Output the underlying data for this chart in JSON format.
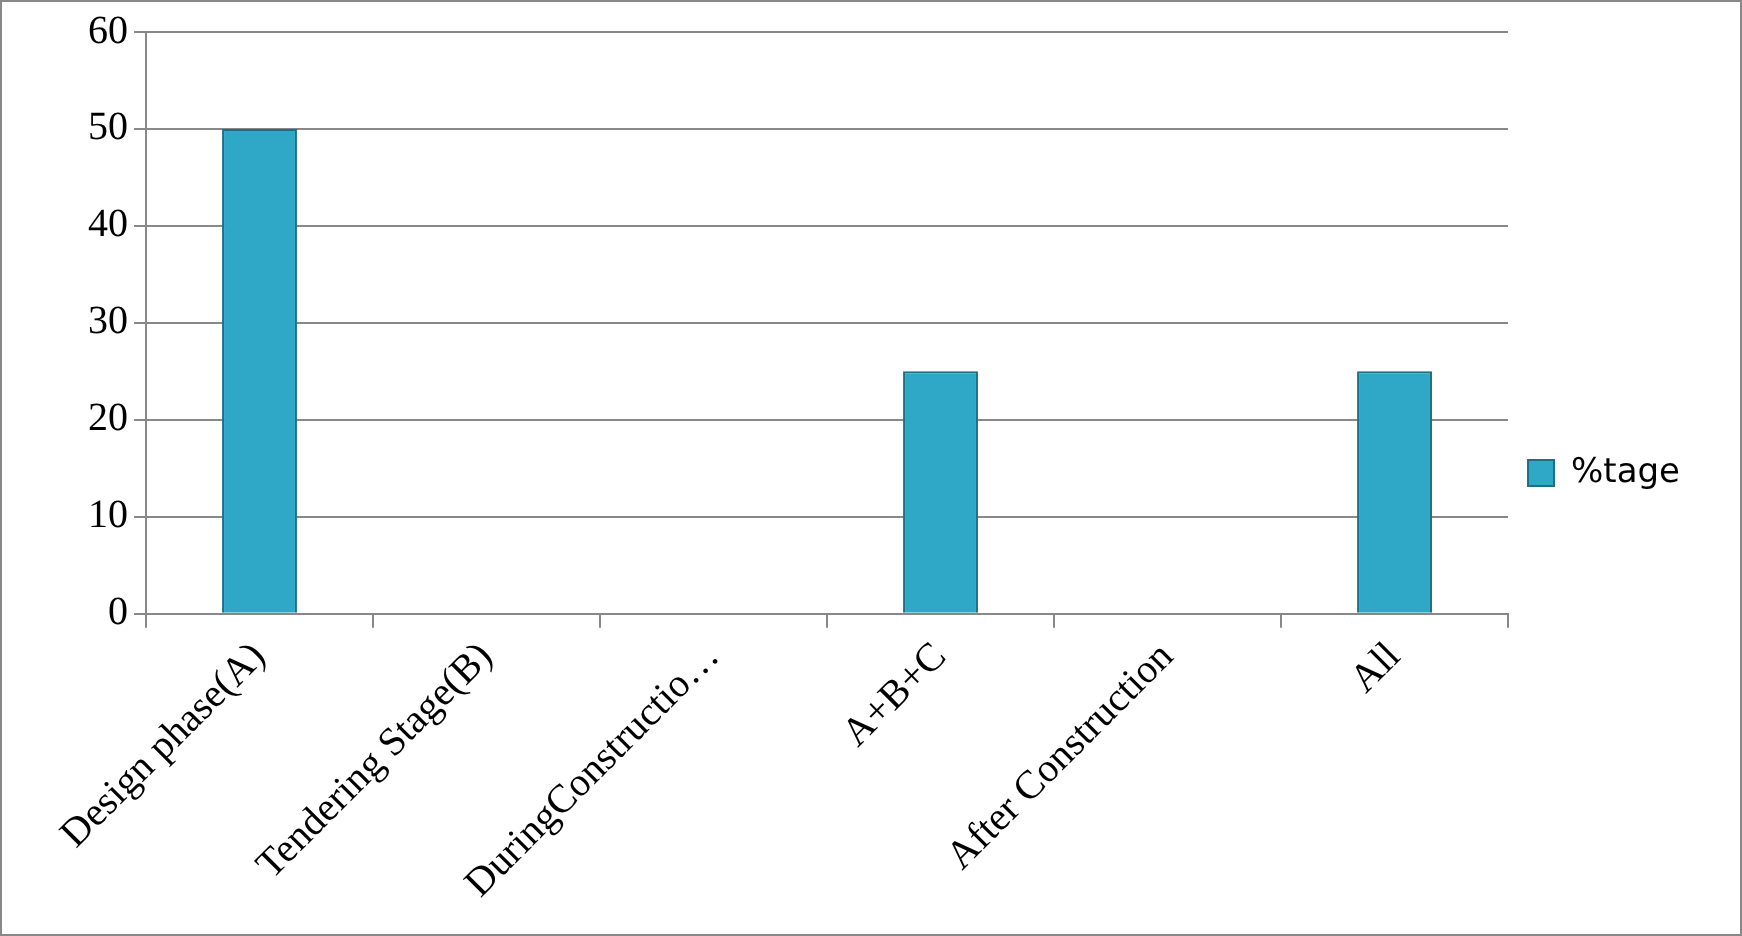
{
  "chart_data": {
    "type": "bar",
    "categories": [
      "Design phase(A)",
      "Tendering Stage(B)",
      "DuringConstructio…",
      "A+B+C",
      "After Construction",
      "All"
    ],
    "series": [
      {
        "name": "%tage",
        "color": "#2fa8c8",
        "values": [
          50,
          0,
          0,
          25,
          0,
          25
        ]
      }
    ],
    "ylim": [
      0,
      60
    ],
    "yticks": [
      0,
      10,
      20,
      30,
      40,
      50,
      60
    ],
    "grid": "y",
    "legend": "right"
  }
}
